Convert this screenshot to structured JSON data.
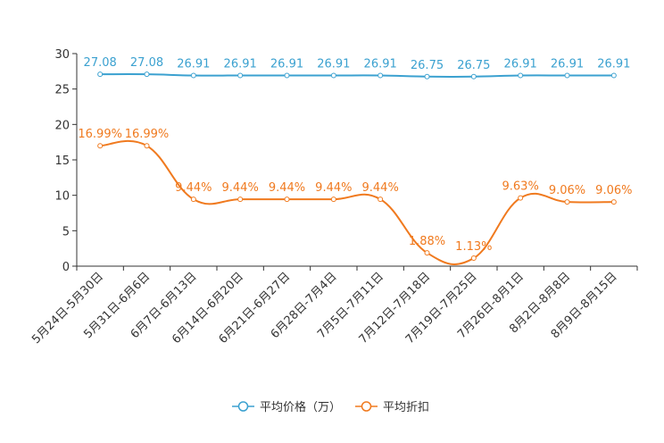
{
  "chart_data": {
    "type": "line",
    "title": "",
    "xlabel": "",
    "ylabel": "",
    "ylim": [
      0,
      30
    ],
    "yticks": [
      0,
      5,
      10,
      15,
      20,
      25,
      30
    ],
    "grid": false,
    "legend_position": "bottom-center",
    "categories": [
      "5月24日-5月30日",
      "5月31日-6月6日",
      "6月7日-6月13日",
      "6月14日-6月20日",
      "6月21日-6月27日",
      "6月28日-7月4日",
      "7月5日-7月11日",
      "7月12日-7月18日",
      "7月19日-7月25日",
      "7月26日-8月1日",
      "8月2日-8月8日",
      "8月9日-8月15日"
    ],
    "series": [
      {
        "name": "平均价格（万）",
        "color": "#3ba1d0",
        "values": [
          27.08,
          27.08,
          26.91,
          26.91,
          26.91,
          26.91,
          26.91,
          26.75,
          26.75,
          26.91,
          26.91,
          26.91
        ],
        "labels": [
          "27.08",
          "27.08",
          "26.91",
          "26.91",
          "26.91",
          "26.91",
          "26.91",
          "26.75",
          "26.75",
          "26.91",
          "26.91",
          "26.91"
        ]
      },
      {
        "name": "平均折扣",
        "color": "#f07a1f",
        "values": [
          16.99,
          16.99,
          9.44,
          9.44,
          9.44,
          9.44,
          9.44,
          1.88,
          1.13,
          9.63,
          9.06,
          9.06
        ],
        "labels": [
          "16.99%",
          "16.99%",
          "9.44%",
          "9.44%",
          "9.44%",
          "9.44%",
          "9.44%",
          "1.88%",
          "1.13%",
          "9.63%",
          "9.06%",
          "9.06%"
        ]
      }
    ]
  }
}
